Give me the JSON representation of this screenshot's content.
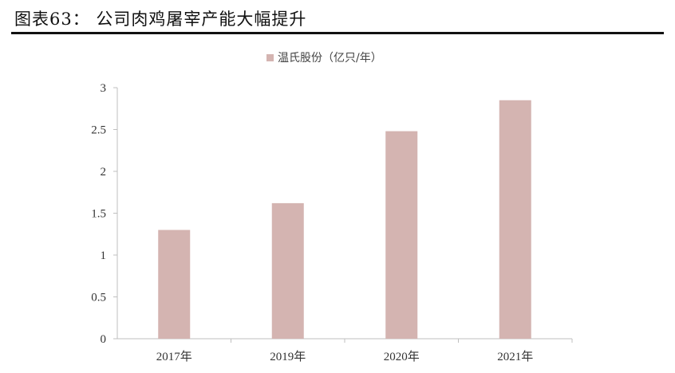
{
  "figure": {
    "title": "图表63：   公司肉鸡屠宰产能大幅提升"
  },
  "chart_data": {
    "type": "bar",
    "categories": [
      "2017年",
      "2019年",
      "2020年",
      "2021年"
    ],
    "series": [
      {
        "name": "温氏股份（亿只/年）",
        "values": [
          1.3,
          1.62,
          2.48,
          2.85
        ],
        "color": "#d4b4b1"
      }
    ],
    "y_ticks": [
      "0",
      "0.5",
      "1",
      "1.5",
      "2",
      "2.5",
      "3"
    ],
    "ylim": [
      0,
      3
    ],
    "legend_position": "top-center",
    "grid": false,
    "axis_color": "#bfbfbf"
  }
}
